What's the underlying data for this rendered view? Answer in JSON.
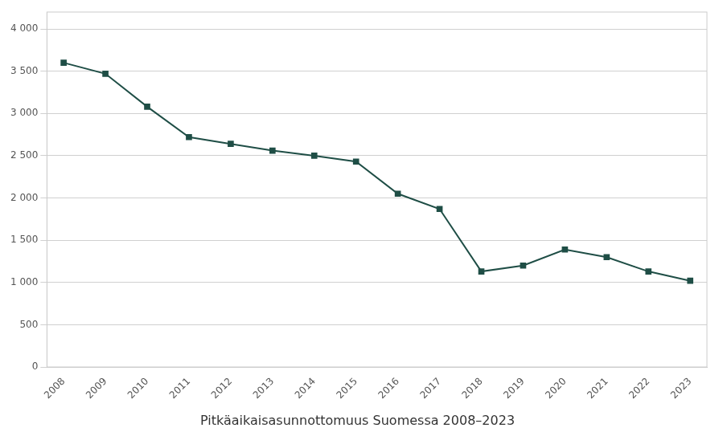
{
  "chart_data": {
    "type": "line",
    "title": "Pitkäaikaisasunnottomuus Suomessa 2008–2023",
    "x": [
      2008,
      2009,
      2010,
      2011,
      2012,
      2013,
      2014,
      2015,
      2016,
      2017,
      2018,
      2019,
      2020,
      2021,
      2022,
      2023
    ],
    "values": [
      3600,
      3470,
      3080,
      2720,
      2640,
      2560,
      2500,
      2430,
      2050,
      1870,
      1130,
      1200,
      1390,
      1300,
      1130,
      1020
    ],
    "color": "#1f4e46",
    "marker": "square",
    "xlim": [
      2007.6,
      2023.4
    ],
    "xticks": [
      2008,
      2009,
      2010,
      2011,
      2012,
      2013,
      2014,
      2015,
      2016,
      2017,
      2018,
      2019,
      2020,
      2021,
      2022,
      2023
    ],
    "ylim": [
      0,
      4200
    ],
    "yticks": [
      0,
      500,
      {
        "value": 1000,
        "label": "1 000"
      },
      {
        "value": 1500,
        "label": "1 500"
      },
      {
        "value": 2000,
        "label": "2 000"
      },
      {
        "value": 2500,
        "label": "2 500"
      },
      {
        "value": 3000,
        "label": "3 000"
      },
      {
        "value": 3500,
        "label": "3 500"
      },
      {
        "value": 4000,
        "label": "4 000"
      }
    ],
    "grid": true
  }
}
